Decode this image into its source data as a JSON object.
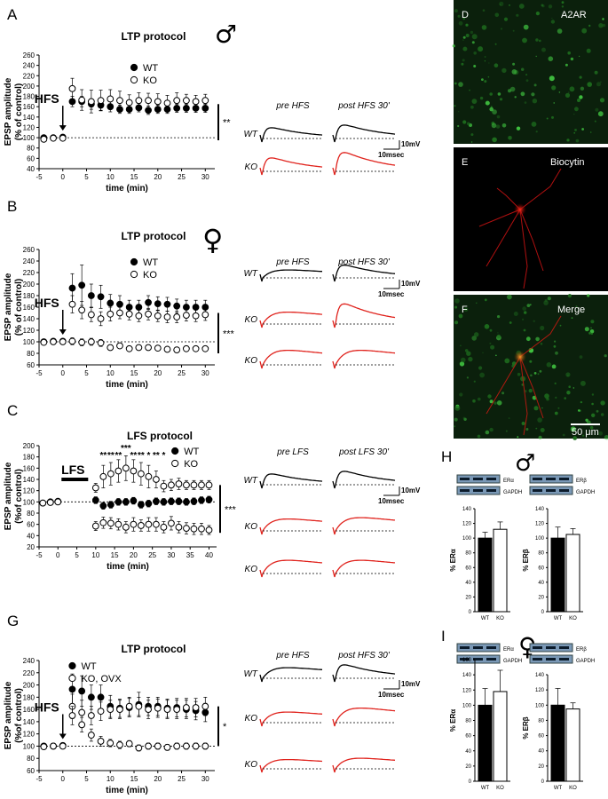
{
  "figure": {
    "colors": {
      "wt": "#000000",
      "ko": "#ffffff",
      "trace_wt": "#000000",
      "trace_ko": "#e0231d",
      "a2ar": "#1f7a1f",
      "biocytin": "#d01010",
      "merge_cell": "#e0781a"
    },
    "panels": {
      "A": {
        "letter": "A",
        "title": "LTP protocol",
        "sex_symbol": "♂",
        "stim": "HFS",
        "ylabel": "EPSP amplitude",
        "ylabel2": "(% of control)",
        "xlabel": "time (min)",
        "sig": "**",
        "trace_pre": "pre HFS",
        "trace_post": "post HFS 30'",
        "trace_rows": [
          "WT",
          "KO"
        ],
        "scale_v": "10mV",
        "scale_t": "10msec"
      },
      "B": {
        "letter": "B",
        "title": "LTP protocol",
        "sex_symbol": "♀",
        "stim": "HFS",
        "ylabel": "EPSP amplitude",
        "ylabel2": "(% of control)",
        "xlabel": "time (min)",
        "sig": "***",
        "trace_pre": "pre HFS",
        "trace_post": "post HFS 30'",
        "trace_rows": [
          "WT",
          "KO",
          "KO"
        ],
        "scale_v": "10mV",
        "scale_t": "10msec"
      },
      "C": {
        "letter": "C",
        "title": "LFS protocol",
        "stim": "LFS",
        "ylabel": "EPSP amplitude",
        "ylabel2": "(%of control)",
        "xlabel": "time (min)",
        "sig": "***",
        "trace_pre": "pre LFS",
        "trace_post": "post LFS 30'",
        "trace_rows": [
          "WT",
          "KO",
          "KO"
        ],
        "scale_v": "10mV",
        "scale_t": "10msec"
      },
      "G": {
        "letter": "G",
        "title": "LTP protocol",
        "stim": "HFS",
        "ylabel": "EPSP amplitude",
        "ylabel2": "(%of control)",
        "xlabel": "time (min)",
        "sig": "*",
        "trace_pre": "pre HFS",
        "trace_post": "post HFS 30'",
        "trace_rows": [
          "WT",
          "KO",
          "KO"
        ],
        "scale_v": "10mV",
        "scale_t": "10msec"
      },
      "D": {
        "letter": "D",
        "label": "A2AR"
      },
      "E": {
        "letter": "E",
        "label": "Biocytin"
      },
      "F": {
        "letter": "F",
        "label": "Merge",
        "scalebar": "50 μm"
      },
      "H": {
        "letter": "H",
        "sex_symbol": "♂",
        "blot_left": [
          "ERα",
          "GAPDH"
        ],
        "blot_right": [
          "ERβ",
          "GAPDH"
        ],
        "ylabel_left": "% ERα",
        "ylabel_right": "% ERβ"
      },
      "I": {
        "letter": "I",
        "sex_symbol": "♀",
        "blot_left": [
          "ERα",
          "GAPDH"
        ],
        "blot_right": [
          "ERβ",
          "GAPDH"
        ],
        "ylabel_left": "% ERα",
        "ylabel_right": "% ERβ"
      }
    }
  },
  "chart_data": [
    {
      "id": "A",
      "type": "scatter",
      "title": "LTP protocol",
      "xlabel": "time (min)",
      "ylabel": "EPSP amplitude (% of control)",
      "xlim": [
        -5,
        32
      ],
      "ylim": [
        40,
        260
      ],
      "xticks": [
        -5,
        0,
        5,
        10,
        15,
        20,
        25,
        30
      ],
      "yticks": [
        40,
        60,
        80,
        100,
        120,
        140,
        160,
        180,
        200,
        220,
        240,
        260
      ],
      "baseline": 100,
      "stim_time": 0,
      "stim_label": "HFS",
      "legend": "top",
      "series": [
        {
          "name": "WT",
          "marker": "filled",
          "x": [
            -4,
            -2,
            0,
            2,
            4,
            6,
            8,
            10,
            12,
            14,
            16,
            18,
            20,
            22,
            24,
            26,
            28,
            30
          ],
          "y": [
            100,
            100,
            101,
            170,
            170,
            165,
            163,
            160,
            155,
            155,
            158,
            153,
            155,
            155,
            157,
            157,
            157,
            157
          ],
          "err": [
            3,
            2,
            3,
            10,
            10,
            10,
            10,
            10,
            8,
            8,
            8,
            8,
            8,
            8,
            8,
            8,
            8,
            8
          ]
        },
        {
          "name": "KO",
          "marker": "open",
          "x": [
            -4,
            -2,
            0,
            2,
            4,
            6,
            8,
            10,
            12,
            14,
            16,
            18,
            20,
            22,
            24,
            26,
            28,
            30
          ],
          "y": [
            97,
            99,
            99,
            195,
            173,
            170,
            172,
            175,
            172,
            168,
            172,
            172,
            170,
            167,
            172,
            172,
            170,
            172
          ],
          "err": [
            3,
            3,
            4,
            20,
            20,
            22,
            20,
            18,
            18,
            15,
            15,
            14,
            15,
            15,
            15,
            12,
            12,
            12
          ]
        }
      ],
      "significance": "**"
    },
    {
      "id": "B",
      "type": "scatter",
      "title": "LTP protocol",
      "xlabel": "time (min)",
      "ylabel": "EPSP amplitude (% of control)",
      "xlim": [
        -5,
        32
      ],
      "ylim": [
        60,
        260
      ],
      "xticks": [
        -5,
        0,
        5,
        10,
        15,
        20,
        25,
        30
      ],
      "yticks": [
        60,
        80,
        100,
        120,
        140,
        160,
        180,
        200,
        220,
        240,
        260
      ],
      "baseline": 100,
      "stim_time": 0,
      "stim_label": "HFS",
      "legend": "top",
      "series": [
        {
          "name": "WT",
          "marker": "filled",
          "x": [
            -4,
            -2,
            0,
            2,
            4,
            6,
            8,
            10,
            12,
            14,
            16,
            18,
            20,
            22,
            24,
            26,
            28,
            30
          ],
          "y": [
            100,
            101,
            101,
            193,
            198,
            180,
            178,
            167,
            165,
            160,
            160,
            168,
            166,
            165,
            162,
            160,
            160,
            160
          ],
          "err": [
            3,
            3,
            3,
            25,
            35,
            20,
            20,
            15,
            15,
            12,
            12,
            12,
            12,
            12,
            12,
            12,
            12,
            12
          ]
        },
        {
          "name": "KO",
          "marker": "open",
          "x": [
            -4,
            -2,
            0,
            2,
            4,
            6,
            8,
            10,
            12,
            14,
            16,
            18,
            20,
            22,
            24,
            26,
            28,
            30
          ],
          "y": [
            99,
            100,
            100,
            165,
            155,
            147,
            140,
            148,
            150,
            148,
            145,
            148,
            145,
            143,
            143,
            146,
            145,
            147
          ],
          "err": [
            3,
            3,
            3,
            15,
            15,
            12,
            12,
            12,
            10,
            10,
            10,
            10,
            10,
            10,
            10,
            10,
            10,
            10
          ]
        },
        {
          "name": "KO",
          "marker": "open",
          "x": [
            2,
            4,
            6,
            8,
            10,
            12,
            14,
            16,
            18,
            20,
            22,
            24,
            26,
            28,
            30
          ],
          "y": [
            101,
            99,
            100,
            98,
            90,
            93,
            88,
            90,
            90,
            89,
            87,
            86,
            88,
            88,
            88
          ],
          "err": [
            6,
            6,
            6,
            6,
            4,
            4,
            3,
            3,
            3,
            3,
            3,
            3,
            3,
            3,
            3
          ]
        }
      ],
      "significance": "***"
    },
    {
      "id": "C",
      "type": "scatter",
      "title": "LFS protocol",
      "xlabel": "time (min)",
      "ylabel": "EPSP amplitude (%of control)",
      "xlim": [
        -5,
        42
      ],
      "ylim": [
        20,
        200
      ],
      "xticks": [
        -5,
        0,
        5,
        10,
        15,
        20,
        25,
        30,
        35,
        40
      ],
      "yticks": [
        20,
        40,
        60,
        80,
        100,
        120,
        140,
        160,
        180,
        200
      ],
      "baseline": 100,
      "stim_label": "LFS",
      "stim_range": [
        0,
        5
      ],
      "legend": "top-right",
      "series": [
        {
          "name": "WT",
          "marker": "filled",
          "x": [
            -4,
            -2,
            0,
            10,
            12,
            14,
            16,
            18,
            20,
            22,
            24,
            26,
            28,
            30,
            32,
            34,
            36,
            38,
            40
          ],
          "y": [
            98,
            100,
            101,
            103,
            93,
            95,
            100,
            100,
            102,
            95,
            97,
            101,
            100,
            101,
            101,
            100,
            101,
            103,
            104
          ],
          "err": [
            3,
            3,
            3,
            6,
            6,
            6,
            6,
            6,
            6,
            6,
            6,
            6,
            6,
            6,
            6,
            6,
            6,
            6,
            6
          ]
        },
        {
          "name": "KO",
          "marker": "open",
          "x": [
            -4,
            -2,
            0,
            10,
            12,
            14,
            16,
            18,
            20,
            22,
            24,
            26,
            28,
            30,
            32,
            34,
            36,
            38,
            40
          ],
          "y": [
            98,
            99,
            100,
            125,
            145,
            150,
            155,
            160,
            155,
            150,
            145,
            140,
            128,
            130,
            132,
            130,
            130,
            130,
            130
          ],
          "err": [
            3,
            3,
            3,
            8,
            20,
            20,
            20,
            22,
            20,
            20,
            20,
            15,
            10,
            10,
            10,
            8,
            8,
            8,
            8
          ]
        },
        {
          "name": "KO",
          "marker": "open",
          "x": [
            10,
            12,
            14,
            16,
            18,
            20,
            22,
            24,
            26,
            28,
            30,
            32,
            34,
            36,
            38,
            40
          ],
          "y": [
            57,
            63,
            62,
            60,
            55,
            60,
            58,
            60,
            60,
            55,
            62,
            55,
            53,
            52,
            52,
            50
          ],
          "err": [
            8,
            10,
            10,
            10,
            10,
            12,
            10,
            12,
            12,
            10,
            12,
            10,
            10,
            10,
            10,
            8
          ]
        }
      ],
      "asterisks": [
        {
          "x": 12,
          "text": "**"
        },
        {
          "x": 14,
          "text": "**"
        },
        {
          "x": 16,
          "text": "**"
        },
        {
          "x": 18,
          "text": "***"
        },
        {
          "x": 20,
          "text": "**"
        },
        {
          "x": 22,
          "text": "**"
        },
        {
          "x": 24,
          "text": "*"
        },
        {
          "x": 26,
          "text": "**"
        },
        {
          "x": 28,
          "text": "*"
        }
      ],
      "significance": "***"
    },
    {
      "id": "G",
      "type": "scatter",
      "title": "LTP protocol",
      "xlabel": "time (min)",
      "ylabel": "EPSP amplitude (%of control)",
      "xlim": [
        -5,
        32
      ],
      "ylim": [
        60,
        240
      ],
      "xticks": [
        -5,
        0,
        5,
        10,
        15,
        20,
        25,
        30
      ],
      "yticks": [
        60,
        80,
        100,
        120,
        140,
        160,
        180,
        200,
        220,
        240
      ],
      "baseline": 100,
      "stim_time": 0,
      "stim_label": "HFS",
      "legend": "top-left",
      "series": [
        {
          "name": "WT",
          "marker": "filled",
          "x": [
            -4,
            -2,
            0,
            2,
            4,
            6,
            8,
            10,
            12,
            14,
            16,
            18,
            20,
            22,
            24,
            26,
            28,
            30
          ],
          "y": [
            100,
            100,
            101,
            193,
            190,
            180,
            180,
            165,
            162,
            163,
            168,
            165,
            165,
            162,
            163,
            160,
            158,
            155
          ],
          "err": [
            3,
            3,
            3,
            25,
            25,
            20,
            20,
            18,
            15,
            15,
            20,
            15,
            15,
            15,
            15,
            15,
            15,
            15
          ]
        },
        {
          "name": "KO, OVX",
          "marker": "open",
          "x": [
            -4,
            -2,
            0,
            2,
            4,
            6,
            8,
            10,
            12,
            14,
            16,
            18,
            20,
            22,
            24,
            26,
            28,
            30
          ],
          "y": [
            99,
            100,
            100,
            165,
            155,
            150,
            157,
            160,
            160,
            165,
            165,
            160,
            162,
            160,
            160,
            163,
            163,
            165
          ],
          "err": [
            3,
            3,
            3,
            20,
            20,
            15,
            15,
            15,
            15,
            15,
            15,
            15,
            15,
            15,
            15,
            15,
            15,
            15
          ]
        },
        {
          "name": "KO, OVX",
          "marker": "open",
          "x": [
            2,
            4,
            6,
            8,
            10,
            12,
            14,
            16,
            18,
            20,
            22,
            24,
            26,
            28,
            30
          ],
          "y": [
            150,
            135,
            118,
            108,
            105,
            102,
            104,
            97,
            100,
            100,
            98,
            100,
            100,
            100,
            100
          ],
          "err": [
            15,
            12,
            10,
            8,
            6,
            6,
            5,
            5,
            5,
            5,
            5,
            5,
            5,
            5,
            5
          ]
        }
      ],
      "significance": "*"
    },
    {
      "id": "H-left",
      "type": "bar",
      "categories": [
        "WT",
        "KO"
      ],
      "values": [
        100,
        112
      ],
      "err": [
        8,
        10
      ],
      "ylabel": "% ERα",
      "ylim": [
        0,
        140
      ],
      "yticks": [
        0,
        20,
        40,
        60,
        80,
        100,
        120,
        140
      ],
      "fills": [
        "#000000",
        "#ffffff"
      ]
    },
    {
      "id": "H-right",
      "type": "bar",
      "categories": [
        "WT",
        "KO"
      ],
      "values": [
        100,
        105
      ],
      "err": [
        15,
        8
      ],
      "ylabel": "% ERβ",
      "ylim": [
        0,
        140
      ],
      "yticks": [
        0,
        20,
        40,
        60,
        80,
        100,
        120,
        140
      ],
      "fills": [
        "#000000",
        "#ffffff"
      ]
    },
    {
      "id": "I-left",
      "type": "bar",
      "categories": [
        "WT",
        "KO"
      ],
      "values": [
        100,
        118
      ],
      "err": [
        22,
        28
      ],
      "ylabel": "% ERα",
      "ylim": [
        0,
        160
      ],
      "yticks": [
        0,
        20,
        40,
        60,
        80,
        100,
        120,
        140,
        160
      ],
      "fills": [
        "#000000",
        "#ffffff"
      ]
    },
    {
      "id": "I-right",
      "type": "bar",
      "categories": [
        "WT",
        "KO"
      ],
      "values": [
        100,
        95
      ],
      "err": [
        22,
        8
      ],
      "ylabel": "% ERβ",
      "ylim": [
        0,
        140
      ],
      "yticks": [
        0,
        20,
        40,
        60,
        80,
        100,
        120,
        140
      ],
      "fills": [
        "#000000",
        "#ffffff"
      ]
    }
  ]
}
